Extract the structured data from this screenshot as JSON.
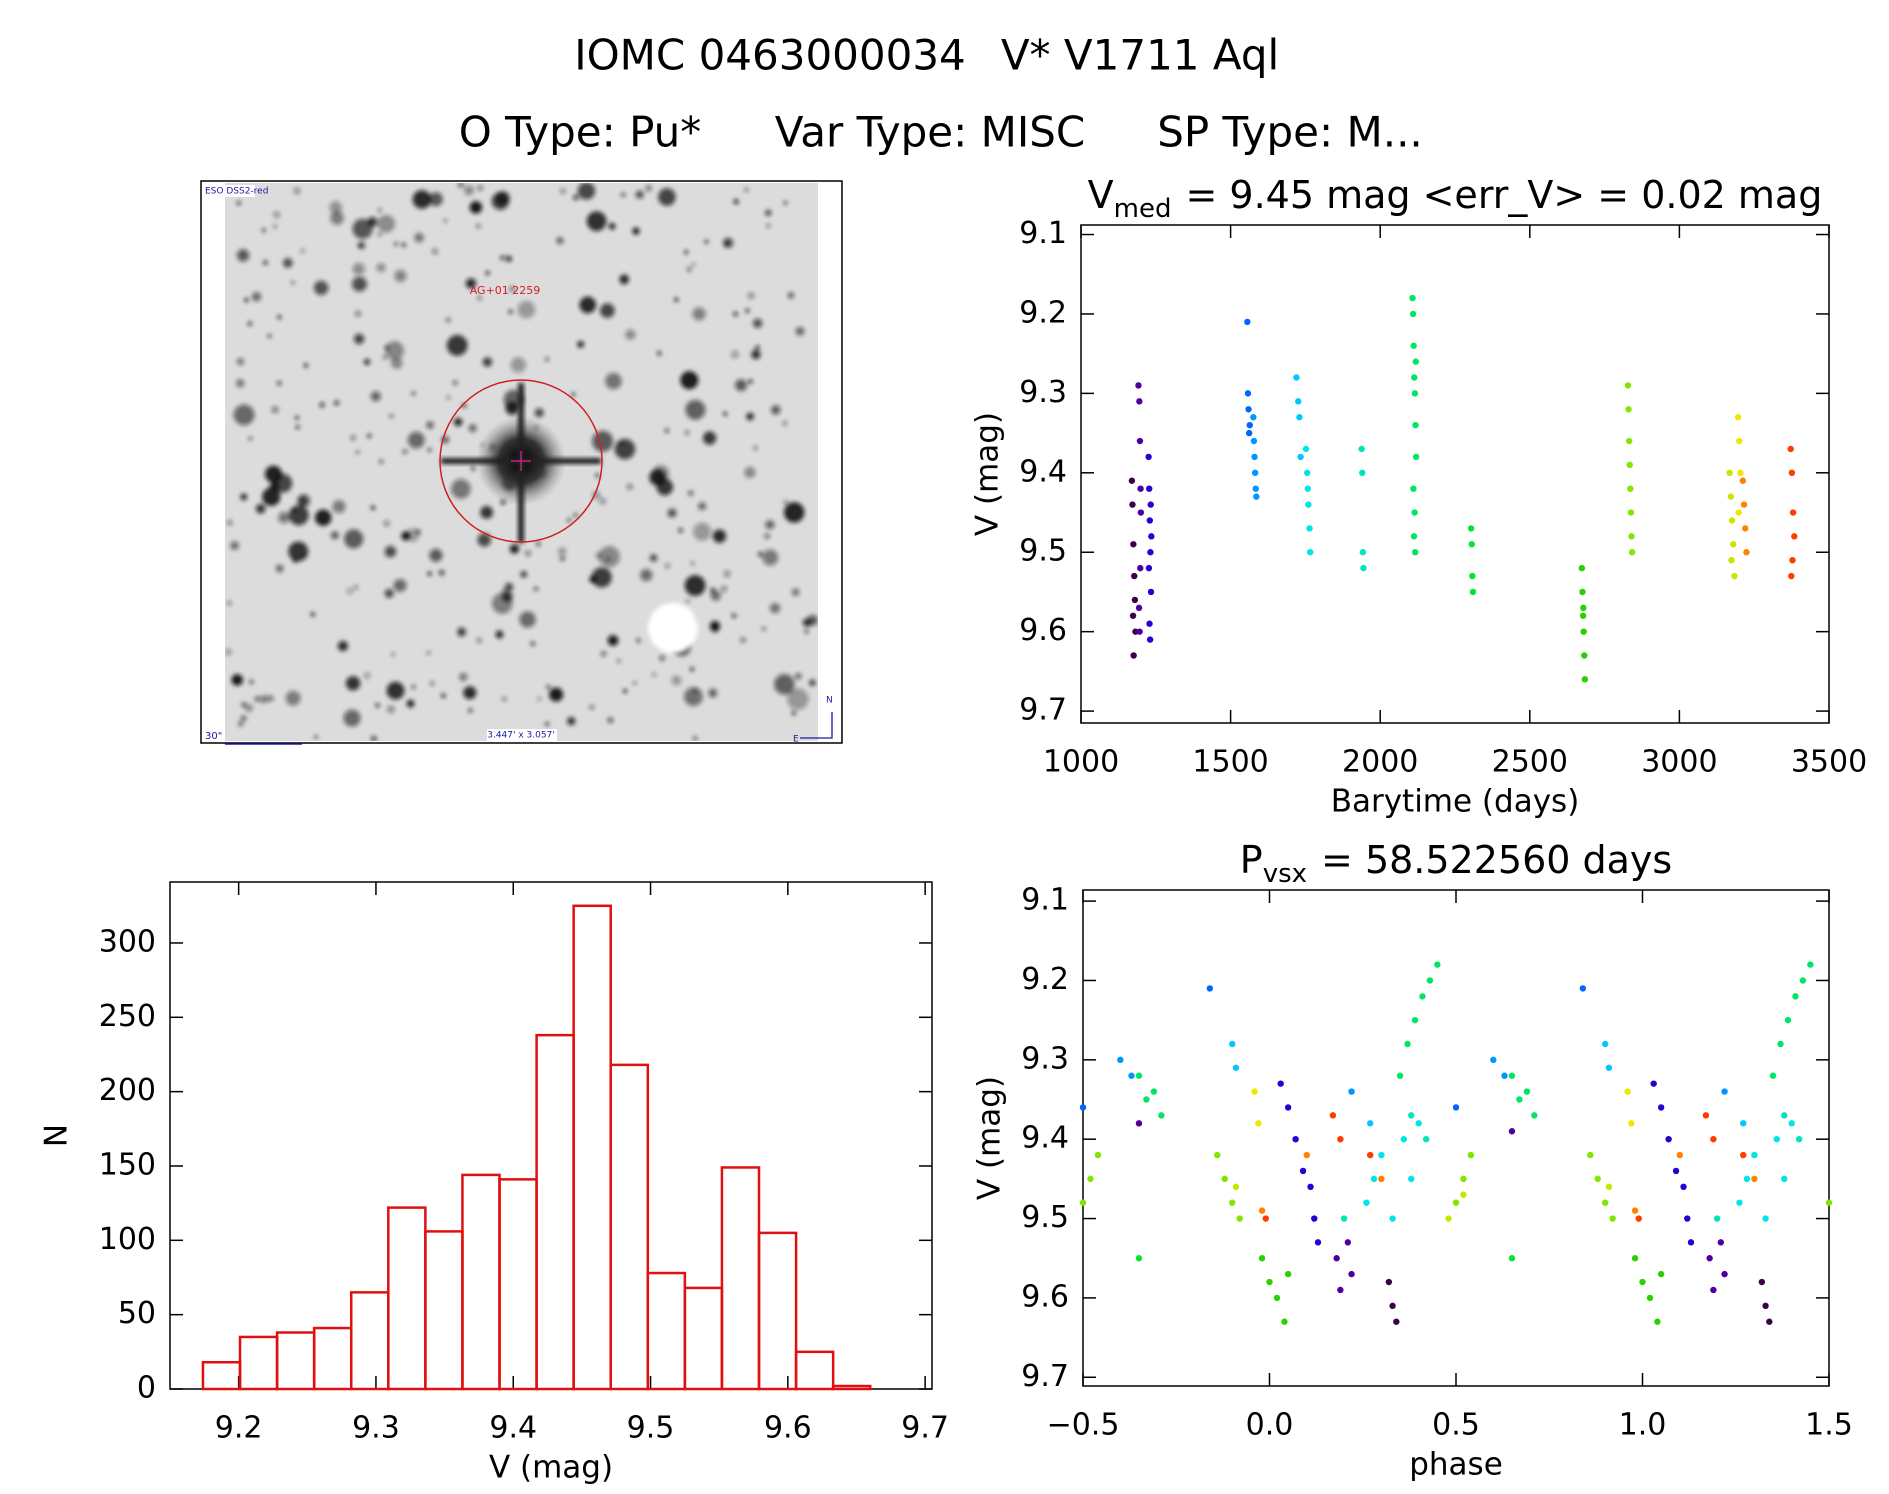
{
  "header": {
    "id": "IOMC 0463000034",
    "name": "V* V1711 Aql",
    "otype": "O Type: Pu*",
    "vartype": "Var Type: MISC",
    "sptype": "SP Type: M..."
  },
  "image": {
    "survey": "ESO DSS2-red",
    "target": "AG+01 2259",
    "scale": "30\"",
    "field": "3.447' x 3.057'",
    "north": "N",
    "east": "E"
  },
  "chart_data": [
    {
      "type": "scatter",
      "title": {
        "main": "V",
        "sub": "med",
        "rest": "= 9.45 mag  <err_V> = 0.02 mag"
      },
      "x_label": "Barytime (days)",
      "y_label": "V (mag)",
      "xlim": [
        1000,
        3500
      ],
      "xticks": [
        1000,
        1500,
        2000,
        2500,
        3000,
        3500
      ],
      "ylim": [
        9.715,
        9.088
      ],
      "yticks": [
        9.1,
        9.2,
        9.3,
        9.4,
        9.5,
        9.6,
        9.7
      ],
      "series": [
        {
          "color": "#3c0046",
          "x": [
            1170,
            1172,
            1175,
            1178,
            1180,
            1182,
            1176,
            1174
          ],
          "values": [
            9.41,
            9.44,
            9.49,
            9.53,
            9.56,
            9.6,
            9.63,
            9.58
          ]
        },
        {
          "color": "#50009a",
          "x": [
            1192,
            1195,
            1197,
            1200,
            1198,
            1194,
            1196,
            1199
          ],
          "values": [
            9.29,
            9.31,
            9.36,
            9.45,
            9.52,
            9.57,
            9.6,
            9.42
          ]
        },
        {
          "color": "#2800d2",
          "x": [
            1226,
            1228,
            1230,
            1232,
            1234,
            1229,
            1231,
            1233,
            1227,
            1235
          ],
          "values": [
            9.38,
            9.42,
            9.46,
            9.5,
            9.55,
            9.59,
            9.61,
            9.44,
            9.52,
            9.48
          ]
        },
        {
          "color": "#0064ff",
          "x": [
            1556,
            1558,
            1560,
            1562,
            1564
          ],
          "values": [
            9.21,
            9.3,
            9.32,
            9.35,
            9.34
          ]
        },
        {
          "color": "#0096ff",
          "x": [
            1576,
            1578,
            1580,
            1582,
            1584,
            1586
          ],
          "values": [
            9.33,
            9.36,
            9.38,
            9.4,
            9.42,
            9.43
          ]
        },
        {
          "color": "#00c8ff",
          "x": [
            1720,
            1726,
            1730,
            1734
          ],
          "values": [
            9.28,
            9.31,
            9.33,
            9.38
          ]
        },
        {
          "color": "#00e6e6",
          "x": [
            1752,
            1756,
            1760,
            1764,
            1766,
            1758
          ],
          "values": [
            9.37,
            9.4,
            9.44,
            9.47,
            9.5,
            9.42
          ]
        },
        {
          "color": "#00e6b4",
          "x": [
            1938,
            1940,
            1942,
            1944
          ],
          "values": [
            9.37,
            9.4,
            9.5,
            9.52
          ]
        },
        {
          "color": "#00e664",
          "x": [
            2108,
            2110,
            2112,
            2114,
            2116,
            2118,
            2120,
            2111,
            2115,
            2113,
            2117,
            2119
          ],
          "values": [
            9.18,
            9.2,
            9.24,
            9.28,
            9.3,
            9.34,
            9.38,
            9.42,
            9.45,
            9.48,
            9.5,
            9.26
          ]
        },
        {
          "color": "#00e632",
          "x": [
            2304,
            2306,
            2308,
            2310
          ],
          "values": [
            9.47,
            9.49,
            9.53,
            9.55
          ]
        },
        {
          "color": "#28d200",
          "x": [
            2674,
            2676,
            2678,
            2680,
            2682,
            2684,
            2679
          ],
          "values": [
            9.52,
            9.55,
            9.58,
            9.6,
            9.63,
            9.66,
            9.57
          ]
        },
        {
          "color": "#82e600",
          "x": [
            2828,
            2830,
            2832,
            2834,
            2836,
            2838,
            2840,
            2842
          ],
          "values": [
            9.29,
            9.32,
            9.36,
            9.39,
            9.42,
            9.45,
            9.48,
            9.5
          ]
        },
        {
          "color": "#c8e600",
          "x": [
            3168,
            3172,
            3176,
            3180,
            3184,
            3174
          ],
          "values": [
            9.4,
            9.43,
            9.46,
            9.49,
            9.53,
            9.51
          ]
        },
        {
          "color": "#f0e600",
          "x": [
            3196,
            3200,
            3204,
            3198
          ],
          "values": [
            9.33,
            9.36,
            9.4,
            9.45
          ]
        },
        {
          "color": "#ff8200",
          "x": [
            3212,
            3216,
            3220,
            3224
          ],
          "values": [
            9.41,
            9.44,
            9.47,
            9.5
          ]
        },
        {
          "color": "#ff3c00",
          "x": [
            3372,
            3376,
            3380,
            3384,
            3378,
            3374
          ],
          "values": [
            9.37,
            9.4,
            9.45,
            9.48,
            9.51,
            9.53
          ]
        }
      ]
    },
    {
      "type": "scatter",
      "title": {
        "main": "P",
        "sub": "vsx",
        "rest": "= 58.522560 days"
      },
      "x_label": "phase",
      "y_label": "V (mag)",
      "xlim": [
        -0.5,
        1.5
      ],
      "xticks": [
        {
          "value": -0.5,
          "label": "−0.5"
        },
        {
          "value": 0,
          "label": "0.0"
        },
        0.5,
        {
          "value": 1,
          "label": "1.0"
        },
        1.5
      ],
      "ylim": [
        9.711,
        9.086
      ],
      "yticks": [
        9.1,
        9.2,
        9.3,
        9.4,
        9.5,
        9.6,
        9.7
      ],
      "series": [
        {
          "color": "#3c0046",
          "x": [
            0.32,
            0.33,
            0.34,
            1.32,
            1.33,
            1.34
          ],
          "values": [
            9.58,
            9.61,
            9.63,
            9.58,
            9.61,
            9.63
          ]
        },
        {
          "color": "#50009a",
          "x": [
            0.18,
            0.19,
            0.21,
            0.22,
            1.18,
            1.19,
            1.21,
            1.22,
            -0.35,
            0.65
          ],
          "values": [
            9.55,
            9.59,
            9.53,
            9.57,
            9.55,
            9.59,
            9.53,
            9.57,
            9.38,
            9.39
          ]
        },
        {
          "color": "#2800d2",
          "x": [
            0.03,
            0.05,
            0.07,
            0.09,
            0.11,
            0.12,
            0.13,
            1.03,
            1.05,
            1.07,
            1.09,
            1.11,
            1.12,
            1.13
          ],
          "values": [
            9.33,
            9.36,
            9.4,
            9.44,
            9.46,
            9.5,
            9.53,
            9.33,
            9.36,
            9.4,
            9.44,
            9.46,
            9.5,
            9.53
          ]
        },
        {
          "color": "#0064ff",
          "x": [
            -0.16,
            0.84,
            -0.5,
            0.5
          ],
          "values": [
            9.21,
            9.21,
            9.36,
            9.36
          ]
        },
        {
          "color": "#0096ff",
          "x": [
            -0.4,
            -0.37,
            0.6,
            0.63,
            0.22,
            1.22
          ],
          "values": [
            9.3,
            9.32,
            9.3,
            9.32,
            9.34,
            9.34
          ]
        },
        {
          "color": "#00c8ff",
          "x": [
            -0.1,
            -0.09,
            0.9,
            0.91,
            0.27,
            1.27
          ],
          "values": [
            9.28,
            9.31,
            9.28,
            9.31,
            9.38,
            9.38
          ]
        },
        {
          "color": "#00e6e6",
          "x": [
            0.26,
            0.28,
            0.3,
            0.33,
            0.36,
            0.38,
            0.4,
            1.26,
            1.28,
            1.3,
            1.33,
            1.36,
            1.38,
            1.4
          ],
          "values": [
            9.48,
            9.45,
            9.42,
            9.5,
            9.4,
            9.45,
            9.38,
            9.48,
            9.45,
            9.42,
            9.5,
            9.4,
            9.45,
            9.38
          ]
        },
        {
          "color": "#00e6b4",
          "x": [
            0.38,
            0.42,
            1.38,
            1.42,
            0.2,
            1.2
          ],
          "values": [
            9.37,
            9.4,
            9.37,
            9.4,
            9.5,
            9.5
          ]
        },
        {
          "color": "#00e664",
          "x": [
            -0.35,
            -0.33,
            -0.31,
            -0.29,
            0.35,
            0.37,
            0.39,
            0.41,
            0.43,
            0.45,
            0.65,
            0.67,
            0.69,
            0.71,
            1.35,
            1.37,
            1.39,
            1.41,
            1.43,
            1.45
          ],
          "values": [
            9.32,
            9.35,
            9.34,
            9.37,
            9.32,
            9.28,
            9.25,
            9.22,
            9.2,
            9.18,
            9.32,
            9.35,
            9.34,
            9.37,
            9.32,
            9.28,
            9.25,
            9.22,
            9.2,
            9.18
          ]
        },
        {
          "color": "#00e632",
          "x": [
            -0.35,
            0.65
          ],
          "values": [
            9.55,
            9.55
          ]
        },
        {
          "color": "#28d200",
          "x": [
            -0.02,
            0,
            0.02,
            0.04,
            0.05,
            0.98,
            1,
            1.02,
            1.04,
            1.05
          ],
          "values": [
            9.55,
            9.58,
            9.6,
            9.63,
            9.57,
            9.55,
            9.58,
            9.6,
            9.63,
            9.57
          ]
        },
        {
          "color": "#82e600",
          "x": [
            -0.5,
            -0.48,
            -0.46,
            -0.14,
            -0.12,
            -0.1,
            -0.08,
            0.5,
            0.52,
            0.54,
            0.86,
            0.88,
            0.9,
            0.92,
            1.5
          ],
          "values": [
            9.48,
            9.45,
            9.42,
            9.42,
            9.45,
            9.48,
            9.5,
            9.48,
            9.45,
            9.42,
            9.42,
            9.45,
            9.48,
            9.5,
            9.48
          ]
        },
        {
          "color": "#c8e600",
          "x": [
            -0.09,
            0.91,
            0.48,
            0.52
          ],
          "values": [
            9.46,
            9.46,
            9.5,
            9.47
          ]
        },
        {
          "color": "#f0e600",
          "x": [
            -0.04,
            0.96,
            -0.03,
            0.97
          ],
          "values": [
            9.34,
            9.34,
            9.38,
            9.38
          ]
        },
        {
          "color": "#ff8200",
          "x": [
            0.1,
            0.3,
            1.1,
            1.3,
            -0.02,
            0.98
          ],
          "values": [
            9.42,
            9.45,
            9.42,
            9.45,
            9.49,
            9.49
          ]
        },
        {
          "color": "#ff3c00",
          "x": [
            0.17,
            0.19,
            1.17,
            1.19,
            -0.01,
            0.99,
            0.27,
            1.27
          ],
          "values": [
            9.37,
            9.4,
            9.37,
            9.4,
            9.5,
            9.5,
            9.42,
            9.42
          ]
        }
      ]
    },
    {
      "type": "histogram",
      "x_label": "V (mag)",
      "y_label": "N",
      "color": "#e01010",
      "bins": [
        9.174,
        9.201,
        9.228,
        9.255,
        9.282,
        9.309,
        9.336,
        9.363,
        9.39,
        9.417,
        9.444,
        9.471,
        9.498,
        9.525,
        9.552,
        9.579,
        9.606,
        9.633,
        9.66
      ],
      "values": [
        18,
        35,
        38,
        41,
        65,
        122,
        106,
        144,
        141,
        238,
        325,
        218,
        78,
        68,
        149,
        105,
        25,
        2
      ],
      "xlim": [
        9.15,
        9.705
      ],
      "xticks": [
        9.2,
        9.3,
        9.4,
        9.5,
        9.6,
        9.7
      ],
      "ylim": [
        0,
        341
      ],
      "yticks": [
        0,
        50,
        100,
        150,
        200,
        250,
        300
      ]
    }
  ]
}
